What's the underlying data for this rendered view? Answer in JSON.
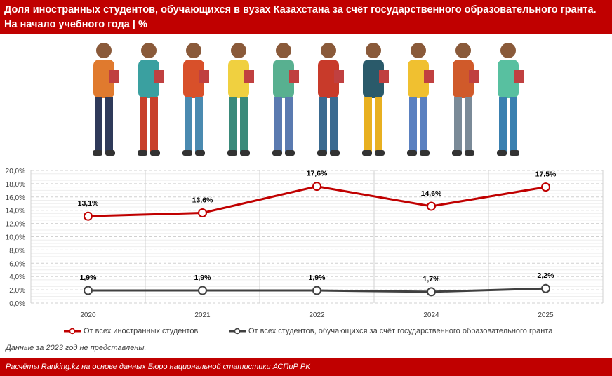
{
  "title": "Доля иностранных студентов, обучающихся в вузах Казахстана за счёт государственного образовательного гранта. На начало учебного года | %",
  "note": "Данные за 2023 год не представлены.",
  "footer": "Расчёты Ranking.kz на основе данных Бюро национальной статистики АСПиР РК",
  "chart_data": {
    "type": "line",
    "categories": [
      "2020",
      "2021",
      "2022",
      "2024",
      "2025"
    ],
    "ylim": [
      0,
      20
    ],
    "yticks": [
      "0,0%",
      "2,0%",
      "4,0%",
      "6,0%",
      "8,0%",
      "10,0%",
      "12,0%",
      "14,0%",
      "16,0%",
      "18,0%",
      "20,0%"
    ],
    "grid": true,
    "legend": "bottom",
    "series": [
      {
        "name": "От всех иностранных студентов",
        "values": [
          13.1,
          13.6,
          17.6,
          14.6,
          17.5
        ],
        "labels": [
          "13,1%",
          "13,6%",
          "17,6%",
          "14,6%",
          "17,5%"
        ],
        "color": "#c00000"
      },
      {
        "name": "От всех студентов, обучающихся за счёт государственного образовательного гранта",
        "values": [
          1.9,
          1.9,
          1.9,
          1.7,
          2.2
        ],
        "labels": [
          "1,9%",
          "1,9%",
          "1,9%",
          "1,7%",
          "2,2%"
        ],
        "color": "#404040"
      }
    ]
  }
}
